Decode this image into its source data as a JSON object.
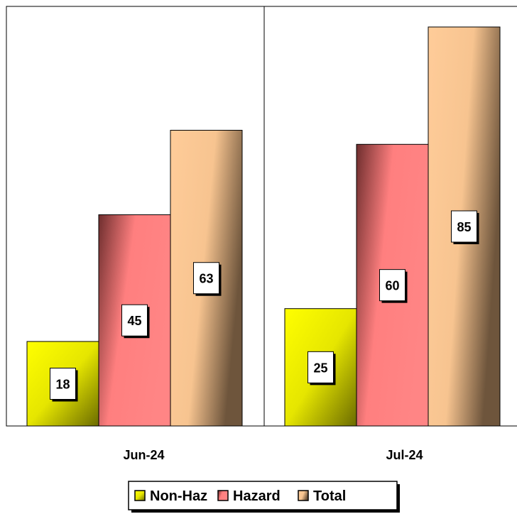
{
  "chart_data": {
    "type": "bar",
    "categories": [
      "Jun-24",
      "Jul-24"
    ],
    "series": [
      {
        "name": "Non-Haz",
        "values": [
          18,
          25
        ],
        "color": "#ffff00"
      },
      {
        "name": "Hazard",
        "values": [
          45,
          60
        ],
        "color": "#ff7f7f"
      },
      {
        "name": "Total",
        "values": [
          63,
          85
        ],
        "color": "#ffcc99"
      }
    ],
    "ylim": [
      0,
      85
    ],
    "legend_position": "bottom",
    "grid": false
  }
}
